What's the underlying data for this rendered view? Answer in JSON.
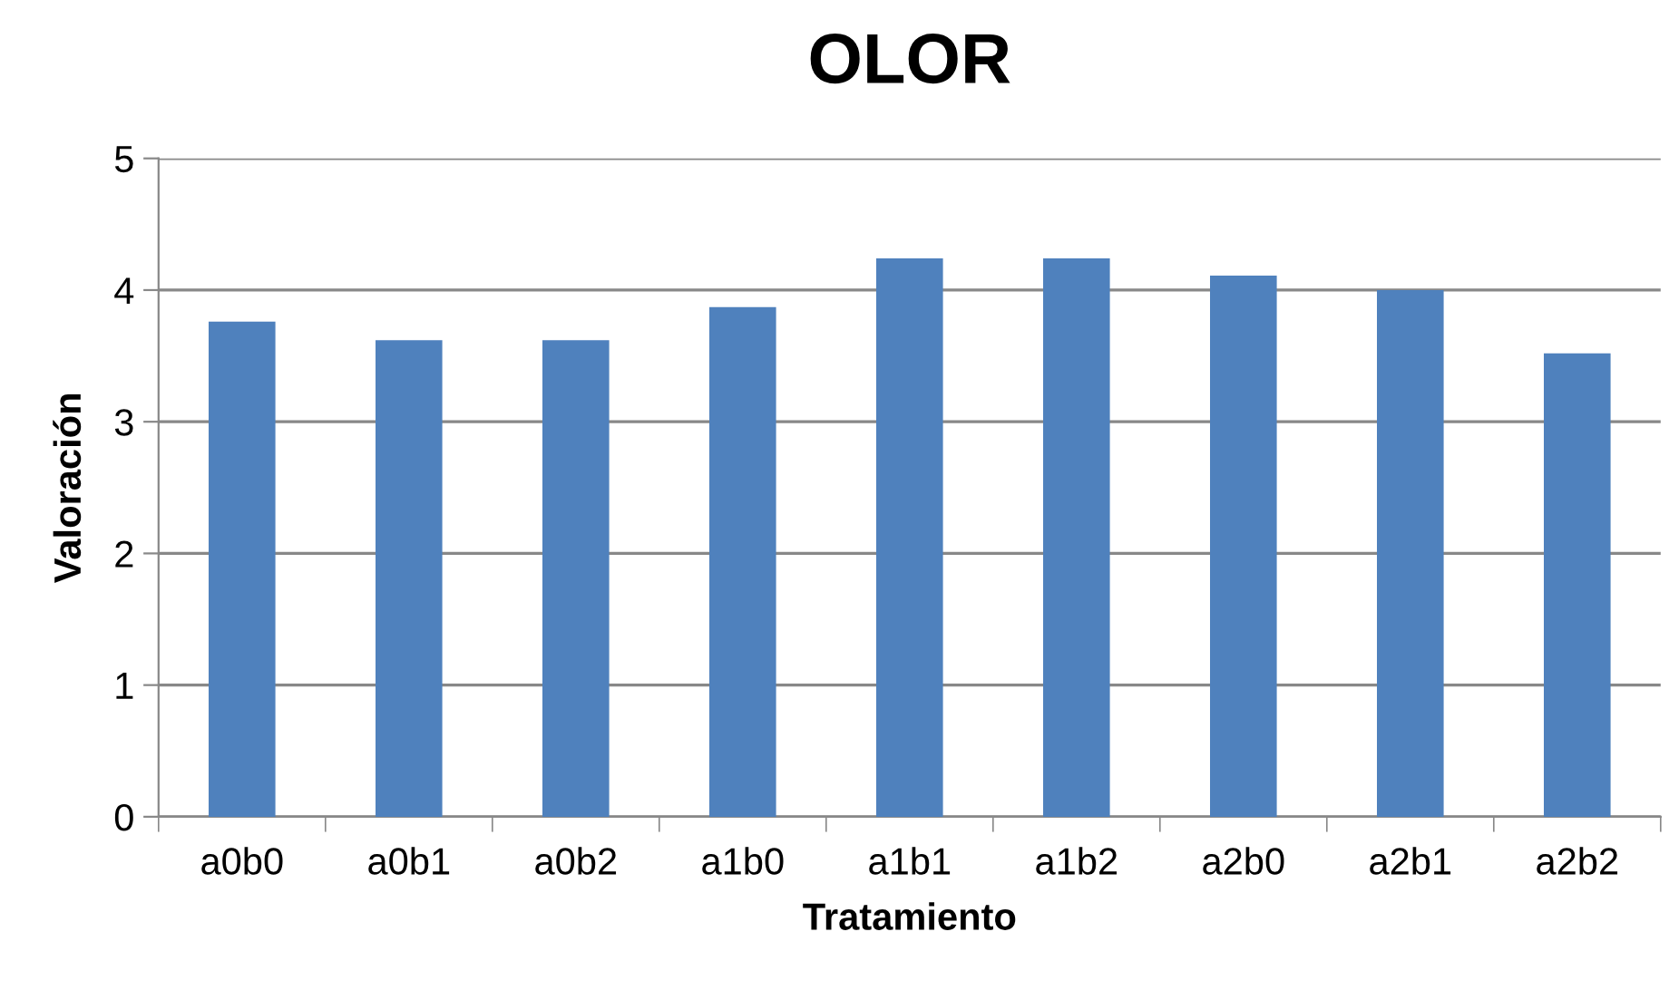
{
  "chart_data": {
    "type": "bar",
    "title": "OLOR",
    "xlabel": "Tratamiento",
    "ylabel": "Valoración",
    "categories": [
      "a0b0",
      "a0b1",
      "a0b2",
      "a1b0",
      "a1b1",
      "a1b2",
      "a2b0",
      "a2b1",
      "a2b2"
    ],
    "values": [
      3.76,
      3.62,
      3.62,
      3.87,
      4.24,
      4.24,
      4.11,
      4.0,
      3.52
    ],
    "color": "#4f81bd",
    "ylim": [
      0,
      5
    ],
    "yticks": [
      0,
      1,
      2,
      3,
      4,
      5
    ],
    "grid": "y",
    "legend": false
  }
}
